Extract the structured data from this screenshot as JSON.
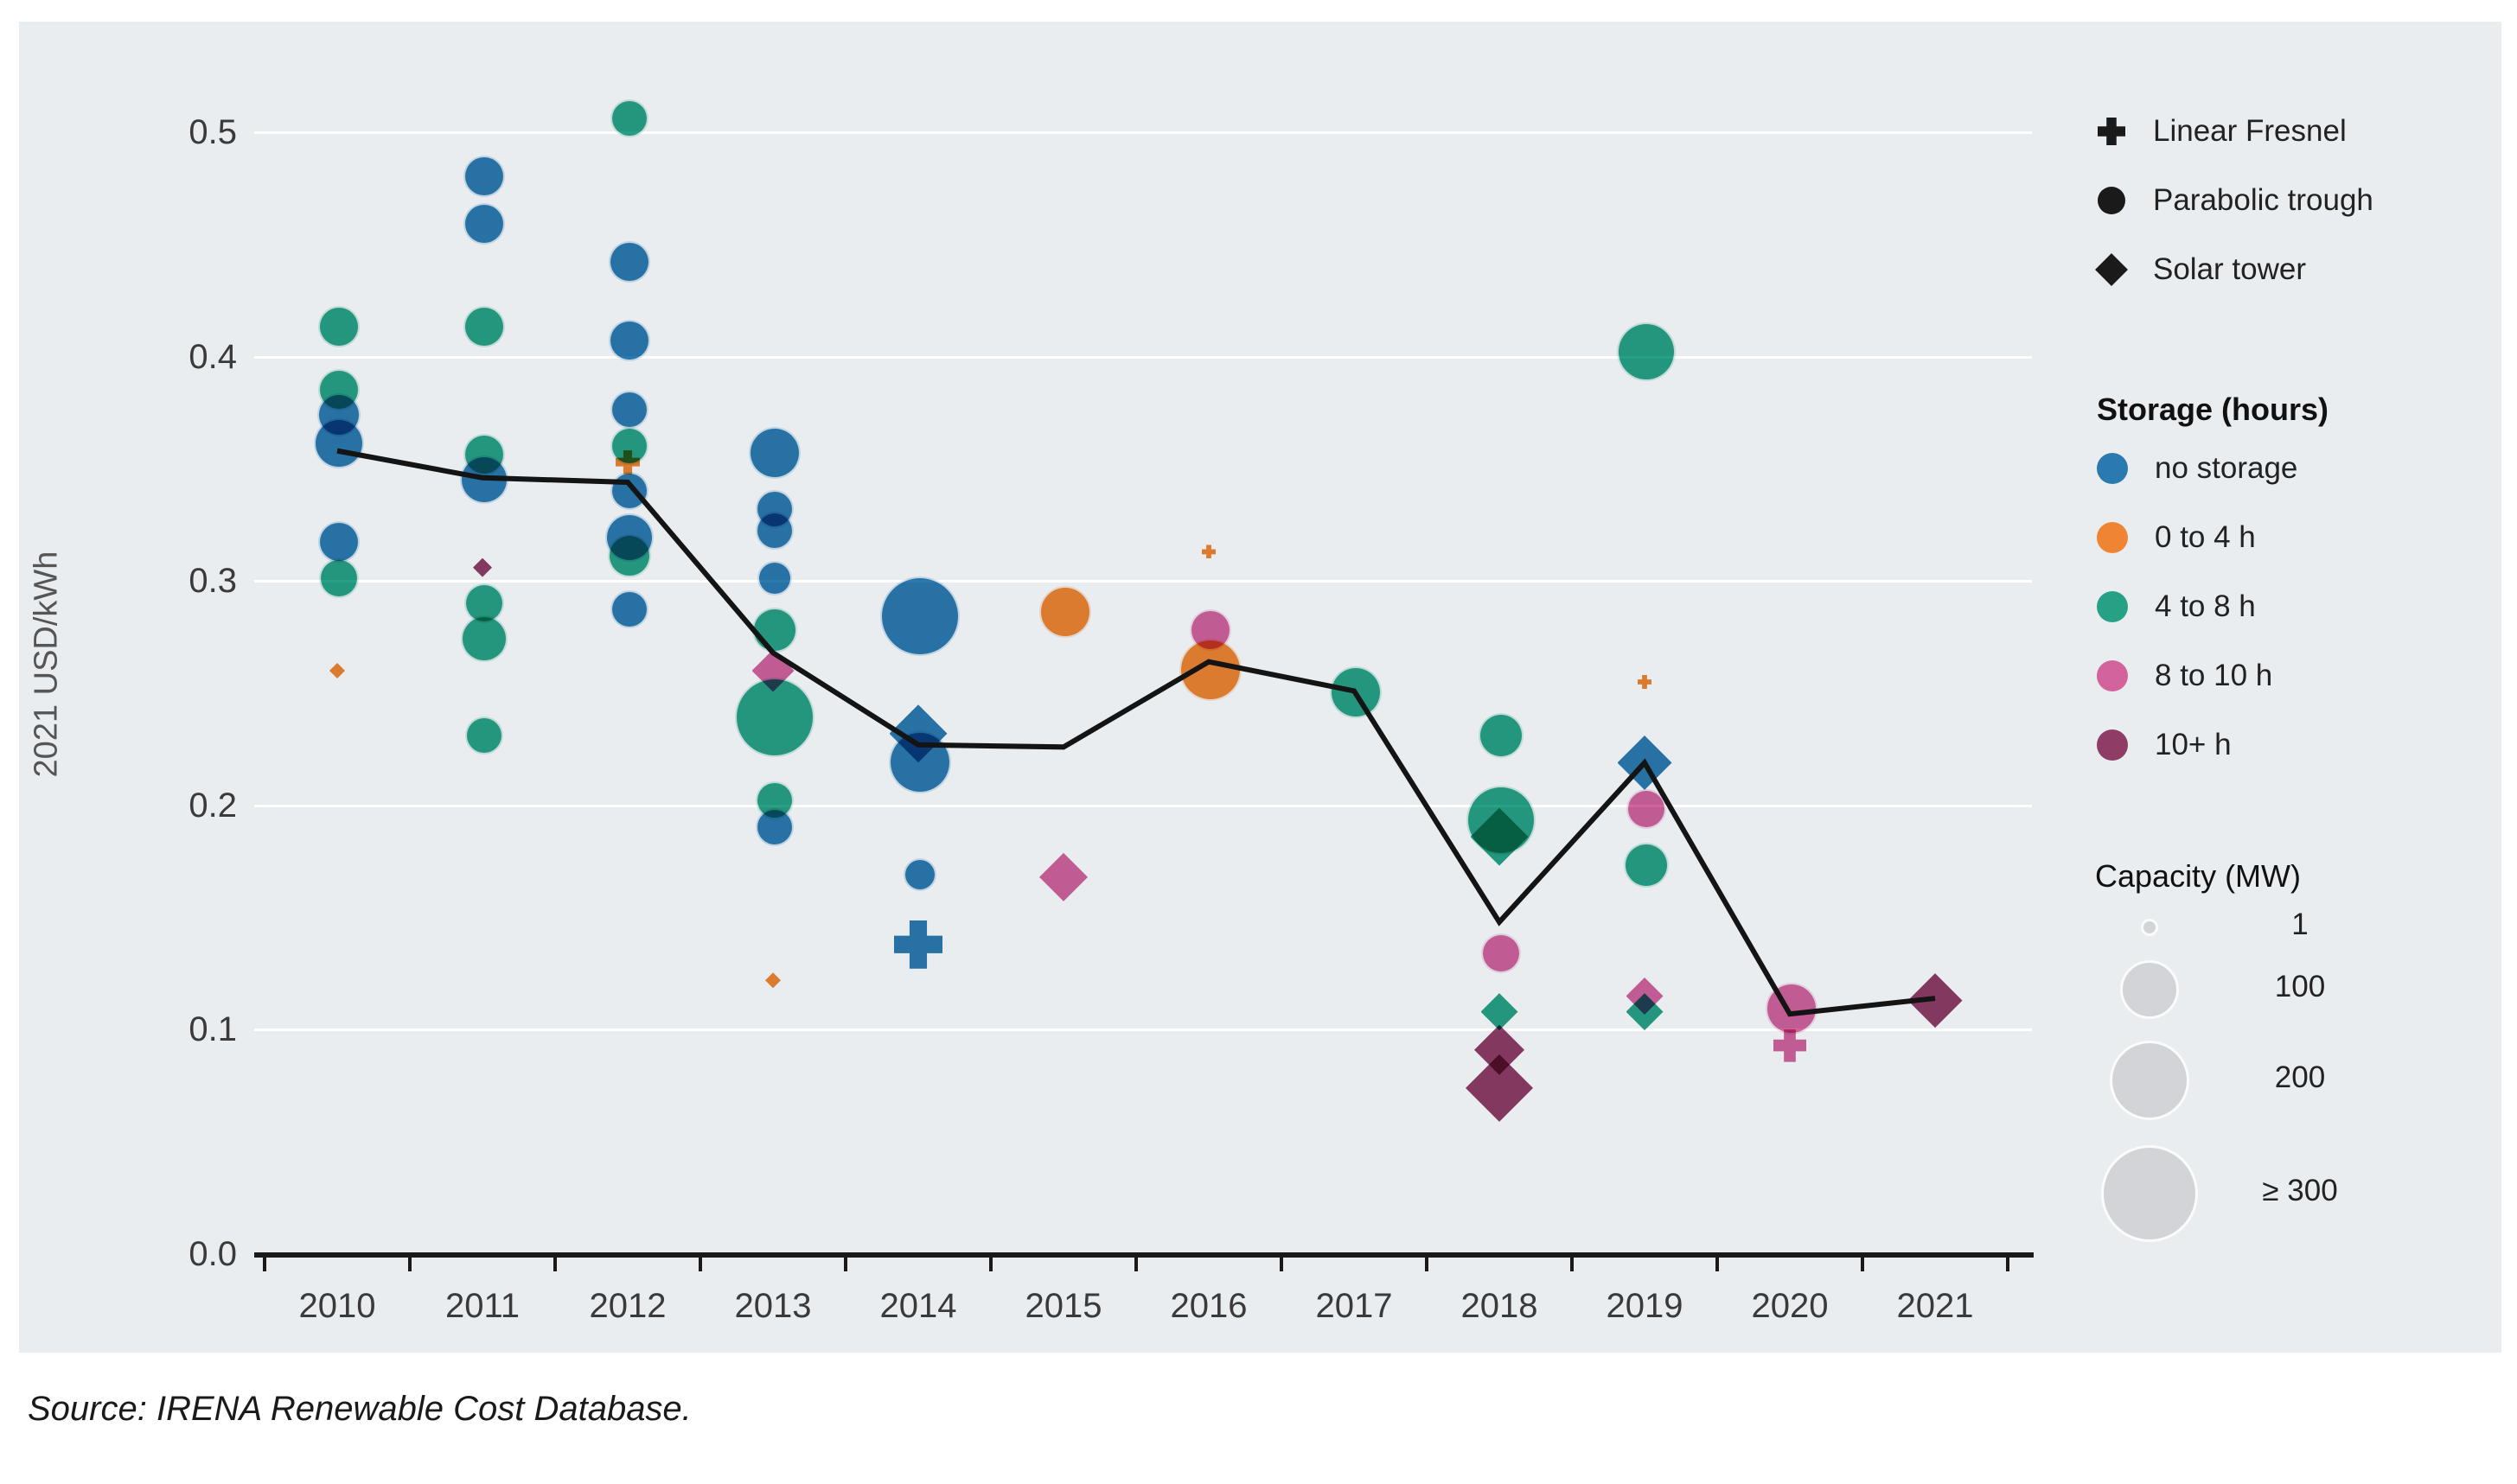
{
  "source_note": "Source: IRENA Renewable Cost Database.",
  "panel": {
    "background": "#e9edf0",
    "gridline_color": "#ffffff",
    "axis_color": "#1a1a1a"
  },
  "y_axis": {
    "label": "2021 USD/kWh",
    "ticks": [
      "0.0",
      "0.1",
      "0.2",
      "0.3",
      "0.4",
      "0.5"
    ]
  },
  "x_axis": {
    "years": [
      "2010",
      "2011",
      "2012",
      "2013",
      "2014",
      "2015",
      "2016",
      "2017",
      "2018",
      "2019",
      "2020",
      "2021"
    ]
  },
  "legend": {
    "technologies": [
      {
        "id": "fresnel",
        "label": "Linear Fresnel",
        "marker": "plus"
      },
      {
        "id": "trough",
        "label": "Parabolic trough",
        "marker": "circle"
      },
      {
        "id": "tower",
        "label": "Solar tower",
        "marker": "diamond"
      }
    ],
    "marker_color": "#1a1a1a",
    "storage_title": "Storage (hours)",
    "storage_classes": [
      {
        "id": "none",
        "label": "no storage",
        "color": "#2a7ab0"
      },
      {
        "id": "0-4",
        "label": "0 to 4 h",
        "color": "#ef8432"
      },
      {
        "id": "4-8",
        "label": "4 to 8 h",
        "color": "#27a186"
      },
      {
        "id": "8-10",
        "label": "8 to 10 h",
        "color": "#d2639c"
      },
      {
        "id": "10+",
        "label": "10+ h",
        "color": "#8f3c66"
      }
    ],
    "capacity_title": "Capacity (MW)",
    "capacity_circle_color": "#d3d4d8",
    "capacity_items": [
      {
        "label": "1",
        "d": 14
      },
      {
        "label": "100",
        "d": 62
      },
      {
        "label": "200",
        "d": 86
      },
      {
        "label": "≥ 300",
        "d": 106
      }
    ]
  },
  "chart_data": {
    "type": "scatter",
    "title": "",
    "xlabel": "",
    "ylabel": "2021 USD/kWh",
    "ylim": [
      0,
      0.52
    ],
    "grid": "horizontal",
    "years": [
      2010,
      2011,
      2012,
      2013,
      2014,
      2015,
      2016,
      2017,
      2018,
      2019,
      2020,
      2021
    ],
    "trend": {
      "name": "Weighted average (line)",
      "color": "#141414",
      "width": 6,
      "values": [
        0.358,
        0.346,
        0.344,
        0.268,
        0.227,
        0.226,
        0.264,
        0.251,
        0.148,
        0.219,
        0.107,
        0.114
      ]
    },
    "points": [
      {
        "year": 2010,
        "value": 0.414,
        "tech": "trough",
        "storage": "4-8",
        "size": 44
      },
      {
        "year": 2010,
        "value": 0.386,
        "tech": "trough",
        "storage": "4-8",
        "size": 44
      },
      {
        "year": 2010,
        "value": 0.375,
        "tech": "trough",
        "storage": "none",
        "size": 46
      },
      {
        "year": 2010,
        "value": 0.362,
        "tech": "trough",
        "storage": "none",
        "size": 54
      },
      {
        "year": 2010,
        "value": 0.318,
        "tech": "trough",
        "storage": "none",
        "size": 44
      },
      {
        "year": 2010,
        "value": 0.302,
        "tech": "trough",
        "storage": "4-8",
        "size": 42
      },
      {
        "year": 2010,
        "value": 0.26,
        "tech": "tower",
        "storage": "0-4",
        "size": 16
      },
      {
        "year": 2011,
        "value": 0.481,
        "tech": "trough",
        "storage": "none",
        "size": 44
      },
      {
        "year": 2011,
        "value": 0.46,
        "tech": "trough",
        "storage": "none",
        "size": 44
      },
      {
        "year": 2011,
        "value": 0.414,
        "tech": "trough",
        "storage": "4-8",
        "size": 44
      },
      {
        "year": 2011,
        "value": 0.357,
        "tech": "trough",
        "storage": "4-8",
        "size": 44
      },
      {
        "year": 2011,
        "value": 0.346,
        "tech": "trough",
        "storage": "none",
        "size": 52
      },
      {
        "year": 2011,
        "value": 0.306,
        "tech": "tower",
        "storage": "10+",
        "size": 20
      },
      {
        "year": 2011,
        "value": 0.291,
        "tech": "trough",
        "storage": "4-8",
        "size": 42
      },
      {
        "year": 2011,
        "value": 0.275,
        "tech": "trough",
        "storage": "4-8",
        "size": 50
      },
      {
        "year": 2011,
        "value": 0.232,
        "tech": "trough",
        "storage": "4-8",
        "size": 40
      },
      {
        "year": 2012,
        "value": 0.507,
        "tech": "trough",
        "storage": "4-8",
        "size": 40
      },
      {
        "year": 2012,
        "value": 0.443,
        "tech": "trough",
        "storage": "none",
        "size": 44
      },
      {
        "year": 2012,
        "value": 0.408,
        "tech": "trough",
        "storage": "none",
        "size": 44
      },
      {
        "year": 2012,
        "value": 0.377,
        "tech": "trough",
        "storage": "none",
        "size": 40
      },
      {
        "year": 2012,
        "value": 0.361,
        "tech": "trough",
        "storage": "4-8",
        "size": 40
      },
      {
        "year": 2012,
        "value": 0.353,
        "tech": "fresnel",
        "storage": "0-4",
        "size": 28
      },
      {
        "year": 2012,
        "value": 0.341,
        "tech": "trough",
        "storage": "none",
        "size": 40
      },
      {
        "year": 2012,
        "value": 0.32,
        "tech": "trough",
        "storage": "none",
        "size": 52
      },
      {
        "year": 2012,
        "value": 0.312,
        "tech": "trough",
        "storage": "4-8",
        "size": 46
      },
      {
        "year": 2012,
        "value": 0.288,
        "tech": "trough",
        "storage": "none",
        "size": 40
      },
      {
        "year": 2013,
        "value": 0.358,
        "tech": "trough",
        "storage": "none",
        "size": 56
      },
      {
        "year": 2013,
        "value": 0.333,
        "tech": "trough",
        "storage": "none",
        "size": 40
      },
      {
        "year": 2013,
        "value": 0.323,
        "tech": "trough",
        "storage": "none",
        "size": 40
      },
      {
        "year": 2013,
        "value": 0.302,
        "tech": "trough",
        "storage": "none",
        "size": 36
      },
      {
        "year": 2013,
        "value": 0.279,
        "tech": "trough",
        "storage": "4-8",
        "size": 48
      },
      {
        "year": 2013,
        "value": 0.26,
        "tech": "tower",
        "storage": "8-10",
        "size": 44
      },
      {
        "year": 2013,
        "value": 0.24,
        "tech": "trough",
        "storage": "4-8",
        "size": 88
      },
      {
        "year": 2013,
        "value": 0.203,
        "tech": "trough",
        "storage": "4-8",
        "size": 40
      },
      {
        "year": 2013,
        "value": 0.191,
        "tech": "trough",
        "storage": "none",
        "size": 40
      },
      {
        "year": 2013,
        "value": 0.122,
        "tech": "tower",
        "storage": "0-4",
        "size": 16
      },
      {
        "year": 2014,
        "value": 0.285,
        "tech": "trough",
        "storage": "none",
        "size": 88
      },
      {
        "year": 2014,
        "value": 0.232,
        "tech": "tower",
        "storage": "none",
        "size": 60
      },
      {
        "year": 2014,
        "value": 0.22,
        "tech": "trough",
        "storage": "none",
        "size": 68
      },
      {
        "year": 2014,
        "value": 0.17,
        "tech": "trough",
        "storage": "none",
        "size": 34
      },
      {
        "year": 2014,
        "value": 0.138,
        "tech": "fresnel",
        "storage": "none",
        "size": 56
      },
      {
        "year": 2015,
        "value": 0.287,
        "tech": "trough",
        "storage": "0-4",
        "size": 56
      },
      {
        "year": 2015,
        "value": 0.168,
        "tech": "tower",
        "storage": "8-10",
        "size": 50
      },
      {
        "year": 2016,
        "value": 0.313,
        "tech": "fresnel",
        "storage": "0-4",
        "size": 16
      },
      {
        "year": 2016,
        "value": 0.279,
        "tech": "trough",
        "storage": "8-10",
        "size": 44
      },
      {
        "year": 2016,
        "value": 0.261,
        "tech": "trough",
        "storage": "0-4",
        "size": 68
      },
      {
        "year": 2017,
        "value": 0.251,
        "tech": "trough",
        "storage": "4-8",
        "size": 56
      },
      {
        "year": 2018,
        "value": 0.232,
        "tech": "trough",
        "storage": "4-8",
        "size": 48
      },
      {
        "year": 2018,
        "value": 0.194,
        "tech": "trough",
        "storage": "4-8",
        "size": 76
      },
      {
        "year": 2018,
        "value": 0.186,
        "tech": "tower",
        "storage": "4-8",
        "size": 60
      },
      {
        "year": 2018,
        "value": 0.135,
        "tech": "trough",
        "storage": "8-10",
        "size": 42
      },
      {
        "year": 2018,
        "value": 0.108,
        "tech": "tower",
        "storage": "4-8",
        "size": 38
      },
      {
        "year": 2018,
        "value": 0.091,
        "tech": "tower",
        "storage": "10+",
        "size": 52
      },
      {
        "year": 2018,
        "value": 0.074,
        "tech": "tower",
        "storage": "10+",
        "size": 70
      },
      {
        "year": 2019,
        "value": 0.403,
        "tech": "trough",
        "storage": "4-8",
        "size": 64
      },
      {
        "year": 2019,
        "value": 0.255,
        "tech": "fresnel",
        "storage": "0-4",
        "size": 16
      },
      {
        "year": 2019,
        "value": 0.219,
        "tech": "tower",
        "storage": "none",
        "size": 56
      },
      {
        "year": 2019,
        "value": 0.199,
        "tech": "trough",
        "storage": "8-10",
        "size": 42
      },
      {
        "year": 2019,
        "value": 0.174,
        "tech": "trough",
        "storage": "4-8",
        "size": 48
      },
      {
        "year": 2019,
        "value": 0.115,
        "tech": "tower",
        "storage": "8-10",
        "size": 38
      },
      {
        "year": 2019,
        "value": 0.108,
        "tech": "tower",
        "storage": "4-8",
        "size": 38
      },
      {
        "year": 2020,
        "value": 0.11,
        "tech": "trough",
        "storage": "8-10",
        "size": 56
      },
      {
        "year": 2020,
        "value": 0.093,
        "tech": "fresnel",
        "storage": "8-10",
        "size": 38
      },
      {
        "year": 2021,
        "value": 0.113,
        "tech": "tower",
        "storage": "10+",
        "size": 56
      }
    ]
  }
}
